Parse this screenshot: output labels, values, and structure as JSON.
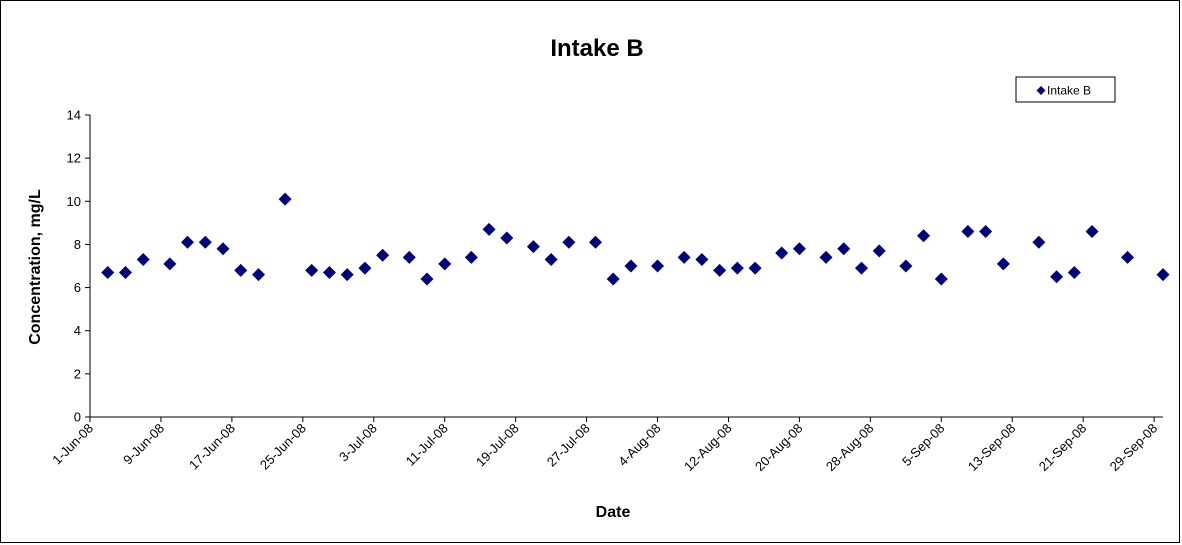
{
  "chart_data": {
    "type": "scatter",
    "title": "Intake B",
    "xlabel": "Date",
    "ylabel": "Concentration, mg/L",
    "x_ticks": [
      "1-Jun-08",
      "9-Jun-08",
      "17-Jun-08",
      "25-Jun-08",
      "3-Jul-08",
      "11-Jul-08",
      "19-Jul-08",
      "27-Jul-08",
      "4-Aug-08",
      "12-Aug-08",
      "20-Aug-08",
      "28-Aug-08",
      "5-Sep-08",
      "13-Sep-08",
      "21-Sep-08",
      "29-Sep-08"
    ],
    "xlim": [
      "2008-06-01",
      "2008-09-30"
    ],
    "ylim": [
      0,
      14
    ],
    "y_ticks": [
      0,
      2,
      4,
      6,
      8,
      10,
      12,
      14
    ],
    "grid": false,
    "legend_position": "top-right",
    "series": [
      {
        "name": "Intake B",
        "color": "#00007f",
        "marker": "diamond",
        "points": [
          {
            "x": "2008-06-03",
            "y": 6.7
          },
          {
            "x": "2008-06-05",
            "y": 6.7
          },
          {
            "x": "2008-06-07",
            "y": 7.3
          },
          {
            "x": "2008-06-10",
            "y": 7.1
          },
          {
            "x": "2008-06-12",
            "y": 8.1
          },
          {
            "x": "2008-06-14",
            "y": 8.1
          },
          {
            "x": "2008-06-16",
            "y": 7.8
          },
          {
            "x": "2008-06-18",
            "y": 6.8
          },
          {
            "x": "2008-06-20",
            "y": 6.6
          },
          {
            "x": "2008-06-23",
            "y": 10.1
          },
          {
            "x": "2008-06-26",
            "y": 6.8
          },
          {
            "x": "2008-06-28",
            "y": 6.7
          },
          {
            "x": "2008-06-30",
            "y": 6.6
          },
          {
            "x": "2008-07-02",
            "y": 6.9
          },
          {
            "x": "2008-07-04",
            "y": 7.5
          },
          {
            "x": "2008-07-07",
            "y": 7.4
          },
          {
            "x": "2008-07-09",
            "y": 6.4
          },
          {
            "x": "2008-07-11",
            "y": 7.1
          },
          {
            "x": "2008-07-14",
            "y": 7.4
          },
          {
            "x": "2008-07-16",
            "y": 8.7
          },
          {
            "x": "2008-07-18",
            "y": 8.3
          },
          {
            "x": "2008-07-21",
            "y": 7.9
          },
          {
            "x": "2008-07-23",
            "y": 7.3
          },
          {
            "x": "2008-07-25",
            "y": 8.1
          },
          {
            "x": "2008-07-28",
            "y": 8.1
          },
          {
            "x": "2008-07-30",
            "y": 6.4
          },
          {
            "x": "2008-08-01",
            "y": 7.0
          },
          {
            "x": "2008-08-04",
            "y": 7.0
          },
          {
            "x": "2008-08-07",
            "y": 7.4
          },
          {
            "x": "2008-08-09",
            "y": 7.3
          },
          {
            "x": "2008-08-11",
            "y": 6.8
          },
          {
            "x": "2008-08-13",
            "y": 6.9
          },
          {
            "x": "2008-08-15",
            "y": 6.9
          },
          {
            "x": "2008-08-18",
            "y": 7.6
          },
          {
            "x": "2008-08-20",
            "y": 7.8
          },
          {
            "x": "2008-08-23",
            "y": 7.4
          },
          {
            "x": "2008-08-25",
            "y": 7.8
          },
          {
            "x": "2008-08-27",
            "y": 6.9
          },
          {
            "x": "2008-08-29",
            "y": 7.7
          },
          {
            "x": "2008-09-01",
            "y": 7.0
          },
          {
            "x": "2008-09-03",
            "y": 8.4
          },
          {
            "x": "2008-09-05",
            "y": 6.4
          },
          {
            "x": "2008-09-08",
            "y": 8.6
          },
          {
            "x": "2008-09-10",
            "y": 8.6
          },
          {
            "x": "2008-09-12",
            "y": 7.1
          },
          {
            "x": "2008-09-16",
            "y": 8.1
          },
          {
            "x": "2008-09-18",
            "y": 6.5
          },
          {
            "x": "2008-09-20",
            "y": 6.7
          },
          {
            "x": "2008-09-22",
            "y": 8.6
          },
          {
            "x": "2008-09-26",
            "y": 7.4
          },
          {
            "x": "2008-09-30",
            "y": 6.6
          }
        ]
      }
    ]
  }
}
